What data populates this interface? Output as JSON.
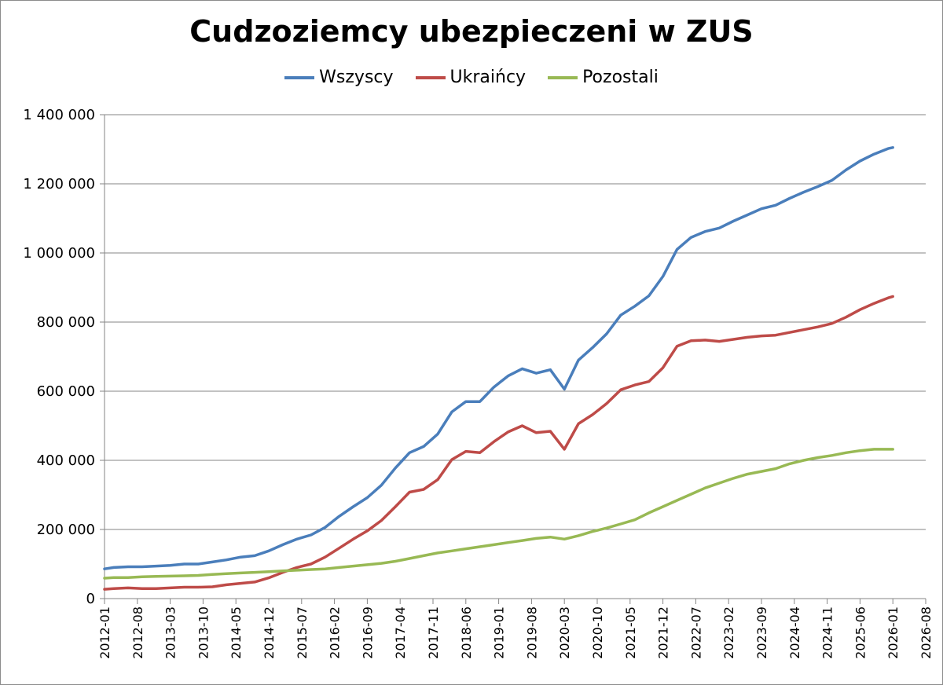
{
  "chart_data": {
    "type": "line",
    "title": "Cudzoziemcy ubezpieczeni w ZUS",
    "xlabel": "",
    "ylabel": "",
    "ylim": [
      0,
      1400000
    ],
    "yticks": [
      0,
      200000,
      400000,
      600000,
      800000,
      1000000,
      1200000,
      1400000
    ],
    "ytick_labels": [
      "0",
      "200 000",
      "400 000",
      "600 000",
      "800 000",
      "1 000 000",
      "1 200 000",
      "1 400 000"
    ],
    "x_start": "2012-01",
    "x_end": "2026-08",
    "xtick_labels": [
      "2012-01",
      "2012-08",
      "2013-03",
      "2013-10",
      "2014-05",
      "2014-12",
      "2015-07",
      "2016-02",
      "2016-09",
      "2017-04",
      "2017-11",
      "2018-06",
      "2019-01",
      "2019-08",
      "2020-03",
      "2020-10",
      "2021-05",
      "2021-12",
      "2022-07",
      "2023-02",
      "2023-09",
      "2024-04",
      "2024-11",
      "2025-06",
      "2026-01",
      "2026-08"
    ],
    "legend_position": "top",
    "grid": true,
    "x": [
      "2012-01",
      "2012-03",
      "2012-06",
      "2012-09",
      "2012-12",
      "2013-03",
      "2013-06",
      "2013-09",
      "2013-12",
      "2014-03",
      "2014-06",
      "2014-09",
      "2014-12",
      "2015-03",
      "2015-06",
      "2015-09",
      "2015-12",
      "2016-03",
      "2016-06",
      "2016-09",
      "2016-12",
      "2017-03",
      "2017-06",
      "2017-09",
      "2017-12",
      "2018-03",
      "2018-06",
      "2018-09",
      "2018-12",
      "2019-03",
      "2019-06",
      "2019-09",
      "2019-12",
      "2020-03",
      "2020-06",
      "2020-09",
      "2020-12",
      "2021-03",
      "2021-06",
      "2021-09",
      "2021-12",
      "2022-03",
      "2022-06",
      "2022-09",
      "2022-12",
      "2023-03",
      "2023-06",
      "2023-09",
      "2023-12",
      "2024-03",
      "2024-06",
      "2024-09",
      "2024-12",
      "2025-03",
      "2025-06",
      "2025-09",
      "2025-12",
      "2026-01"
    ],
    "series": [
      {
        "name": "Wszyscy",
        "color": "#4a7ebb",
        "values": [
          86000,
          90000,
          92000,
          92000,
          94000,
          96000,
          100000,
          100000,
          106000,
          112000,
          120000,
          124000,
          138000,
          156000,
          172000,
          184000,
          206000,
          238000,
          266000,
          292000,
          328000,
          378000,
          422000,
          440000,
          476000,
          540000,
          570000,
          570000,
          612000,
          644000,
          665000,
          652000,
          662000,
          606000,
          690000,
          726000,
          766000,
          820000,
          846000,
          876000,
          932000,
          1010000,
          1045000,
          1062000,
          1072000,
          1092000,
          1110000,
          1128000,
          1138000,
          1158000,
          1176000,
          1192000,
          1210000,
          1240000,
          1266000,
          1286000,
          1302000,
          1305000
        ]
      },
      {
        "name": "Ukraińcy",
        "color": "#be4b48",
        "values": [
          27000,
          29000,
          31000,
          29000,
          29000,
          31000,
          33000,
          33000,
          34000,
          40000,
          44000,
          48000,
          60000,
          76000,
          90000,
          100000,
          120000,
          146000,
          172000,
          196000,
          226000,
          266000,
          308000,
          316000,
          344000,
          402000,
          426000,
          422000,
          454000,
          482000,
          500000,
          480000,
          484000,
          432000,
          506000,
          532000,
          564000,
          604000,
          618000,
          628000,
          668000,
          730000,
          746000,
          748000,
          744000,
          750000,
          756000,
          760000,
          762000,
          770000,
          778000,
          786000,
          796000,
          814000,
          836000,
          854000,
          870000,
          874000
        ]
      },
      {
        "name": "Pozostali",
        "color": "#98b954",
        "values": [
          59000,
          61000,
          61000,
          63000,
          64000,
          65000,
          66000,
          67000,
          70000,
          72000,
          74000,
          76000,
          78000,
          80000,
          82000,
          84000,
          86000,
          90000,
          94000,
          98000,
          102000,
          108000,
          116000,
          124000,
          132000,
          138000,
          144000,
          150000,
          156000,
          162000,
          168000,
          174000,
          178000,
          172000,
          182000,
          194000,
          204000,
          216000,
          228000,
          248000,
          266000,
          284000,
          302000,
          320000,
          334000,
          348000,
          360000,
          368000,
          376000,
          390000,
          400000,
          408000,
          414000,
          422000,
          428000,
          432000,
          432000,
          432000
        ]
      }
    ]
  }
}
